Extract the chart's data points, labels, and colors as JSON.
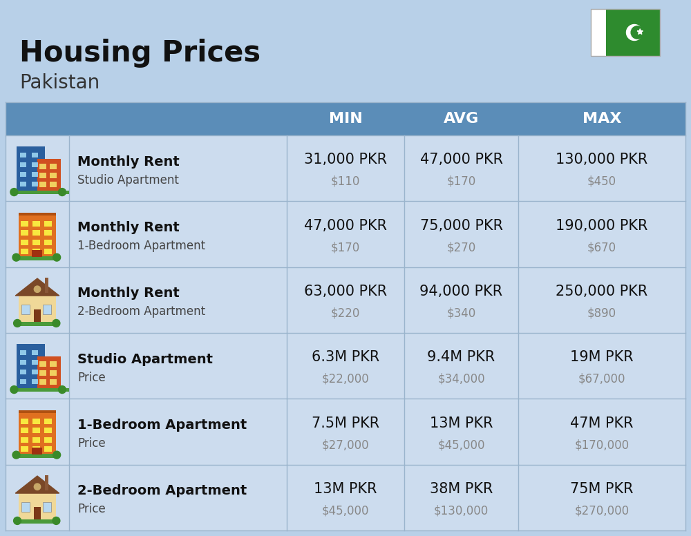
{
  "title": "Housing Prices",
  "subtitle": "Pakistan",
  "background_color": "#b8d0e8",
  "header_color": "#5b8db8",
  "header_text_color": "#ffffff",
  "row_color": "#ccdcee",
  "col_divider_color": "#9ab4cc",
  "header_labels": [
    "MIN",
    "AVG",
    "MAX"
  ],
  "rows": [
    {
      "icon_type": "blue_red_office",
      "label_bold": "Monthly Rent",
      "label_sub": "Studio Apartment",
      "min_pkr": "31,000 PKR",
      "min_usd": "$110",
      "avg_pkr": "47,000 PKR",
      "avg_usd": "$170",
      "max_pkr": "130,000 PKR",
      "max_usd": "$450"
    },
    {
      "icon_type": "orange_apt",
      "label_bold": "Monthly Rent",
      "label_sub": "1-Bedroom Apartment",
      "min_pkr": "47,000 PKR",
      "min_usd": "$170",
      "avg_pkr": "75,000 PKR",
      "avg_usd": "$270",
      "max_pkr": "190,000 PKR",
      "max_usd": "$670"
    },
    {
      "icon_type": "house_tan",
      "label_bold": "Monthly Rent",
      "label_sub": "2-Bedroom Apartment",
      "min_pkr": "63,000 PKR",
      "min_usd": "$220",
      "avg_pkr": "94,000 PKR",
      "avg_usd": "$340",
      "max_pkr": "250,000 PKR",
      "max_usd": "$890"
    },
    {
      "icon_type": "blue_red_office",
      "label_bold": "Studio Apartment",
      "label_sub": "Price",
      "min_pkr": "6.3M PKR",
      "min_usd": "$22,000",
      "avg_pkr": "9.4M PKR",
      "avg_usd": "$34,000",
      "max_pkr": "19M PKR",
      "max_usd": "$67,000"
    },
    {
      "icon_type": "orange_apt",
      "label_bold": "1-Bedroom Apartment",
      "label_sub": "Price",
      "min_pkr": "7.5M PKR",
      "min_usd": "$27,000",
      "avg_pkr": "13M PKR",
      "avg_usd": "$45,000",
      "max_pkr": "47M PKR",
      "max_usd": "$170,000"
    },
    {
      "icon_type": "house_tan",
      "label_bold": "2-Bedroom Apartment",
      "label_sub": "Price",
      "min_pkr": "13M PKR",
      "min_usd": "$45,000",
      "avg_pkr": "38M PKR",
      "avg_usd": "$130,000",
      "max_pkr": "75M PKR",
      "max_usd": "$270,000"
    }
  ]
}
